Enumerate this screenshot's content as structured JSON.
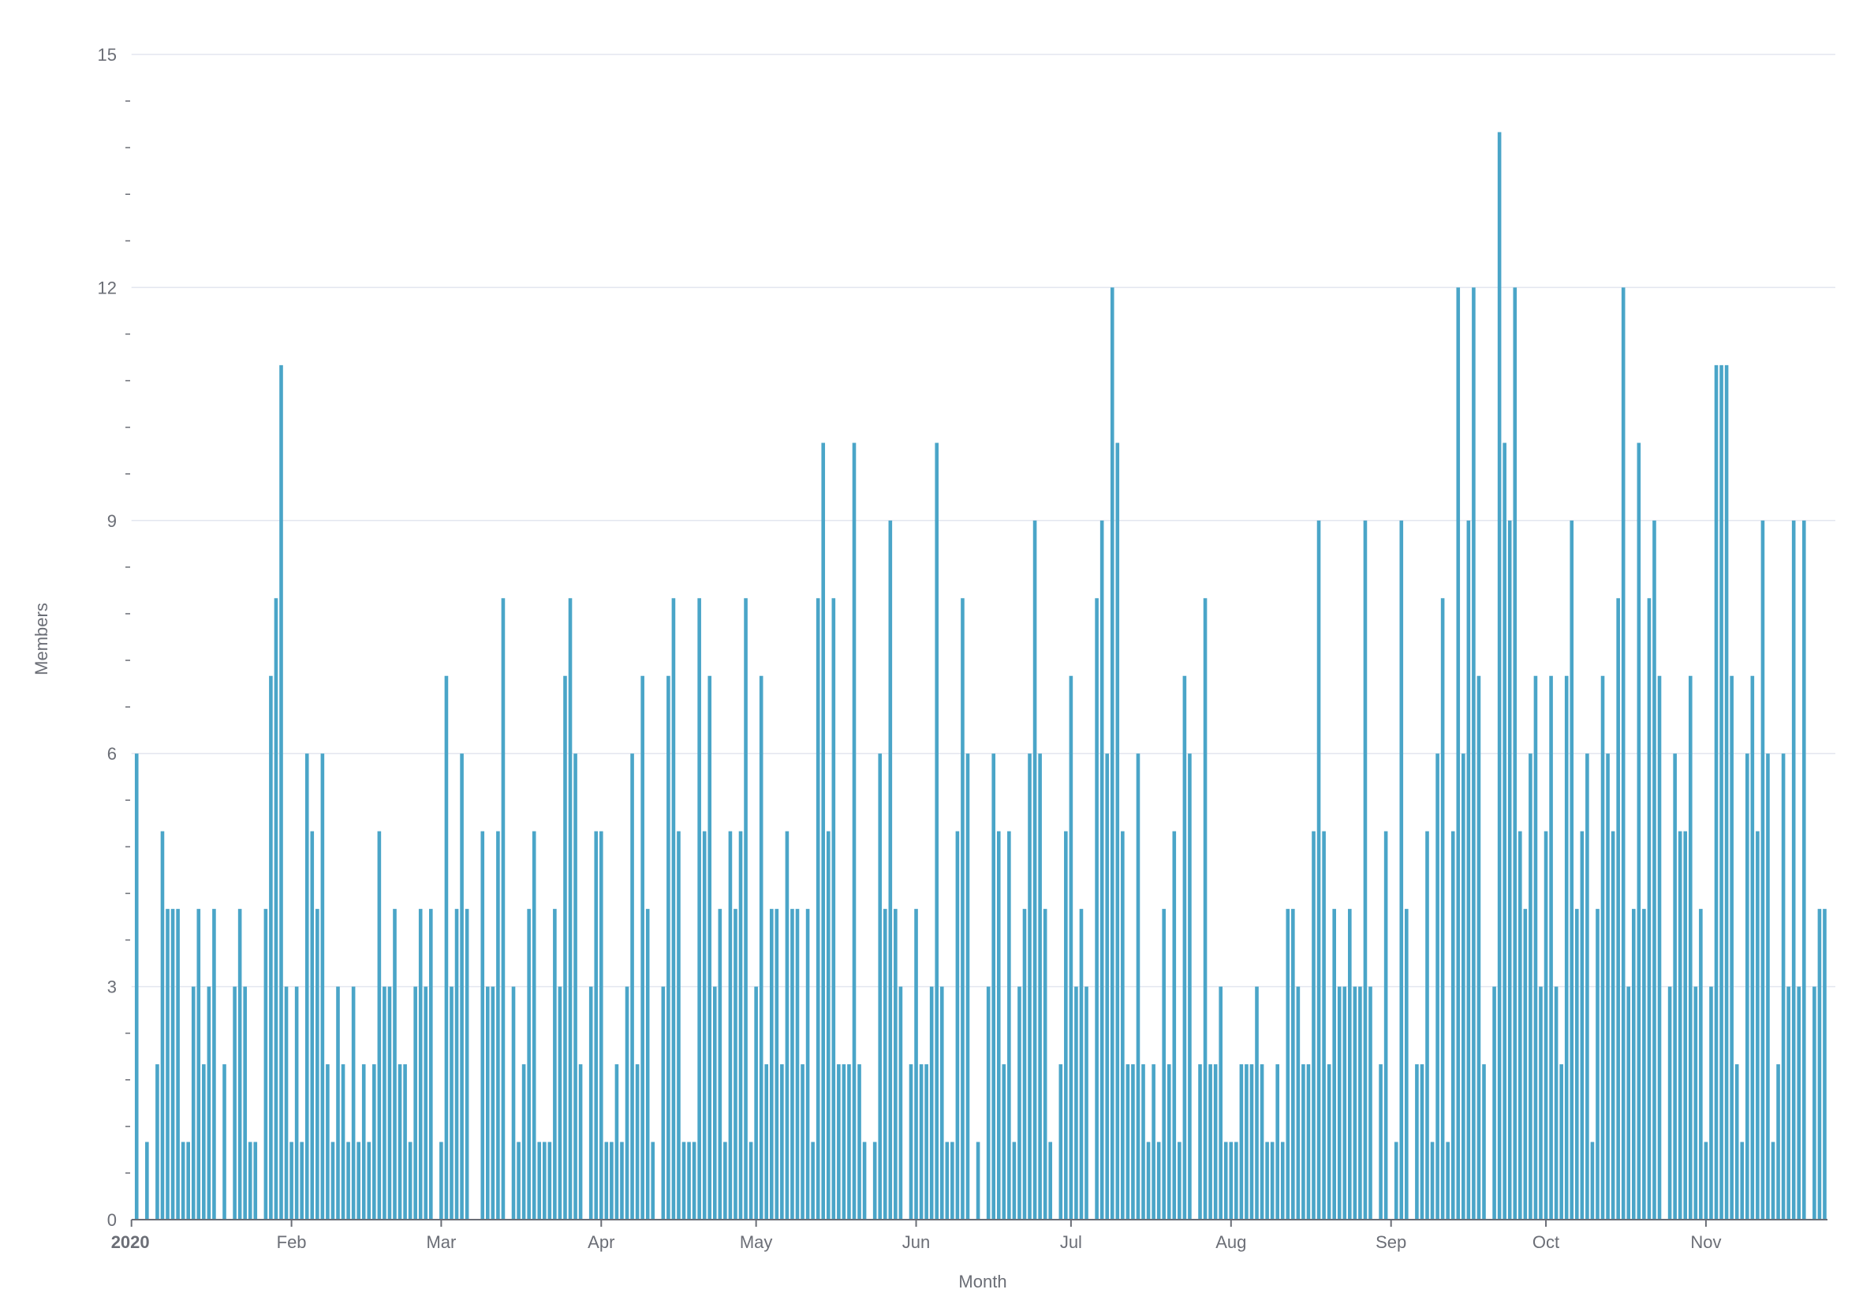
{
  "chart_data": {
    "type": "bar",
    "title": "",
    "xlabel": "Month",
    "ylabel": "Members",
    "ylim": [
      0,
      15
    ],
    "y_ticks": [
      0,
      3,
      6,
      9,
      12,
      15
    ],
    "y_minor_step": 0.6,
    "grid": true,
    "legend": null,
    "bar_color": "#4aa5c8",
    "x_start": "2020-01-01",
    "x_end": "2020-11-23",
    "x_ticks": [
      {
        "label": "2020",
        "day_index": 0,
        "bold": true
      },
      {
        "label": "Feb",
        "day_index": 31
      },
      {
        "label": "Mar",
        "day_index": 60
      },
      {
        "label": "Apr",
        "day_index": 91
      },
      {
        "label": "May",
        "day_index": 121
      },
      {
        "label": "Jun",
        "day_index": 152
      },
      {
        "label": "Jul",
        "day_index": 182
      },
      {
        "label": "Aug",
        "day_index": 213
      },
      {
        "label": "Sep",
        "day_index": 244
      },
      {
        "label": "Oct",
        "day_index": 274
      },
      {
        "label": "Nov",
        "day_index": 305
      }
    ],
    "series": [
      {
        "name": "Members",
        "months": {
          "Jan": [
            6,
            0,
            1,
            0,
            2,
            5,
            4,
            4,
            4,
            1,
            1,
            3,
            4,
            2,
            3,
            4,
            0,
            2,
            0,
            3,
            4,
            3,
            1,
            1,
            0,
            4,
            7,
            8,
            11,
            3,
            1
          ],
          "Feb": [
            3,
            1,
            6,
            5,
            4,
            6,
            2,
            1,
            3,
            2,
            1,
            3,
            1,
            2,
            1,
            2,
            5,
            3,
            3,
            4,
            2,
            2,
            1,
            3,
            4,
            3,
            4,
            0,
            1
          ],
          "Mar": [
            7,
            3,
            4,
            6,
            4,
            0,
            0,
            5,
            3,
            3,
            5,
            8,
            0,
            3,
            1,
            2,
            4,
            5,
            1,
            1,
            1,
            4,
            3,
            7,
            8,
            6,
            2,
            0,
            3,
            5,
            5
          ],
          "Apr": [
            1,
            1,
            2,
            1,
            3,
            6,
            2,
            7,
            4,
            1,
            0,
            3,
            7,
            8,
            5,
            1,
            1,
            1,
            8,
            5,
            7,
            3,
            4,
            1,
            5,
            4,
            5,
            8,
            1,
            3
          ],
          "May": [
            7,
            2,
            4,
            4,
            2,
            5,
            4,
            4,
            2,
            4,
            1,
            8,
            10,
            5,
            8,
            2,
            2,
            2,
            10,
            2,
            1,
            0,
            1,
            6,
            4,
            9,
            4,
            3,
            0,
            2,
            4
          ],
          "Jun": [
            2,
            2,
            3,
            10,
            3,
            1,
            1,
            5,
            8,
            6,
            0,
            1,
            0,
            3,
            6,
            5,
            2,
            5,
            1,
            3,
            4,
            6,
            9,
            6,
            4,
            1,
            0,
            2,
            5,
            7
          ],
          "Jul": [
            3,
            4,
            3,
            0,
            8,
            9,
            6,
            12,
            10,
            5,
            2,
            2,
            6,
            2,
            1,
            2,
            1,
            4,
            2,
            5,
            1,
            7,
            6,
            0,
            2,
            8,
            2,
            2,
            3,
            1,
            1
          ],
          "Aug": [
            1,
            2,
            2,
            2,
            3,
            2,
            1,
            1,
            2,
            1,
            4,
            4,
            3,
            2,
            2,
            5,
            9,
            5,
            2,
            4,
            3,
            3,
            4,
            3,
            3,
            9,
            3,
            0,
            2,
            5,
            0
          ],
          "Sep": [
            1,
            9,
            4,
            0,
            2,
            2,
            5,
            1,
            6,
            8,
            1,
            5,
            12,
            6,
            9,
            12,
            7,
            2,
            0,
            3,
            14,
            10,
            9,
            12,
            5,
            4,
            6,
            7,
            3,
            5
          ],
          "Oct": [
            7,
            3,
            2,
            7,
            9,
            4,
            5,
            6,
            1,
            4,
            7,
            6,
            5,
            8,
            12,
            3,
            4,
            10,
            4,
            8,
            9,
            7,
            0,
            3,
            6,
            5,
            5,
            7,
            3,
            4,
            1
          ],
          "Nov": [
            3,
            11,
            11,
            11,
            7,
            2,
            1,
            6,
            7,
            5,
            9,
            6,
            1,
            2,
            6,
            3,
            9,
            3,
            9,
            0,
            3,
            4,
            4
          ]
        }
      }
    ]
  }
}
